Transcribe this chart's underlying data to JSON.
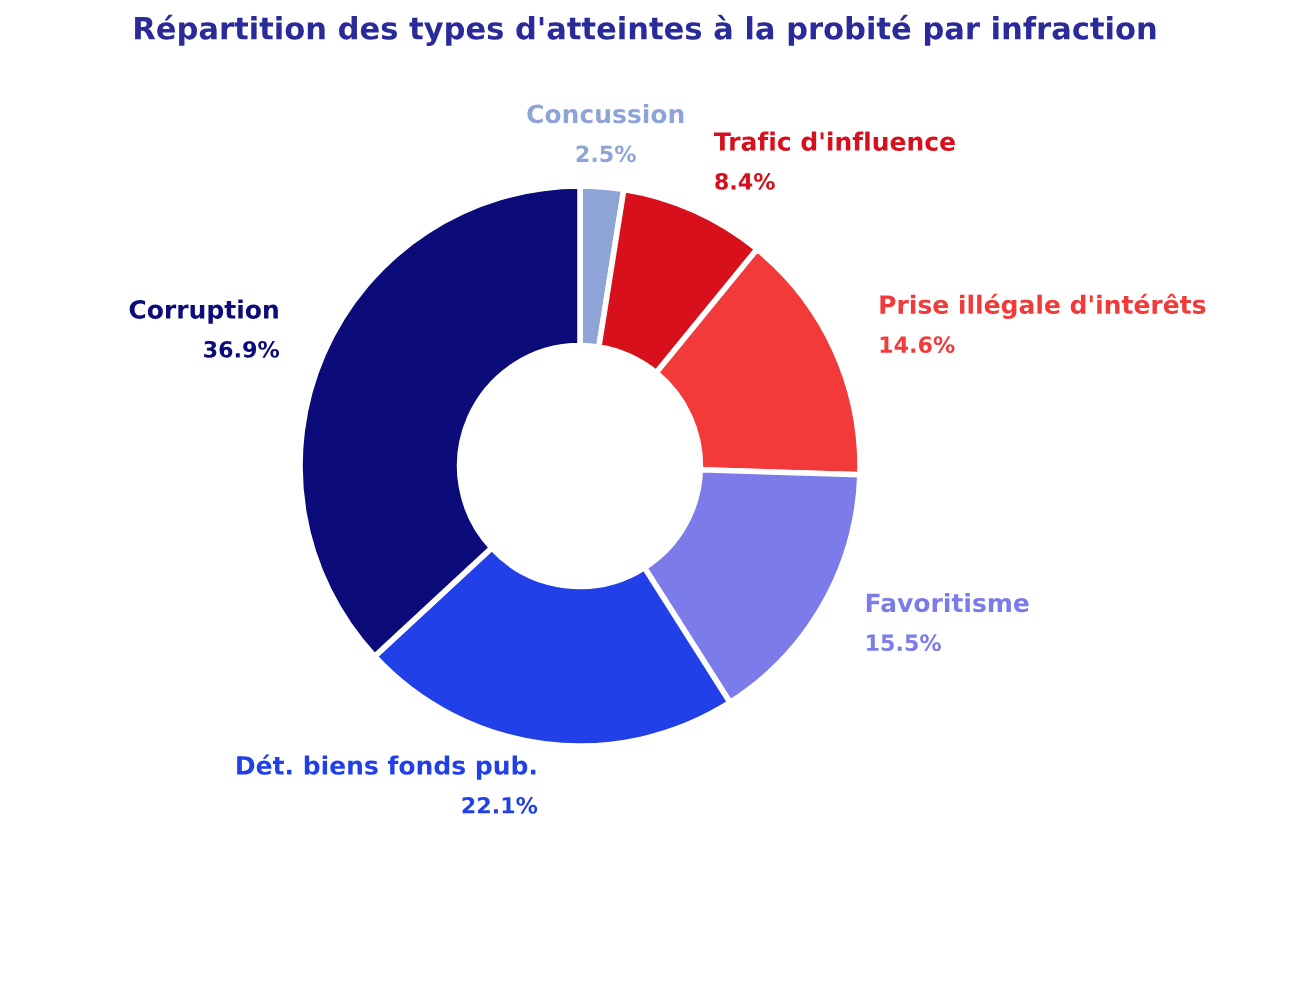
{
  "chart_data": {
    "type": "donut",
    "title": "Répartition des types d'atteintes à la probité par infraction",
    "categories": [
      "Concussion",
      "Trafic d'influence",
      "Prise illégale d'intérêts",
      "Favoritisme",
      "Dét. biens fonds pub.",
      "Corruption"
    ],
    "values": [
      2.5,
      8.4,
      14.6,
      15.5,
      22.1,
      36.9
    ],
    "value_labels": [
      "2.5%",
      "8.4%",
      "14.6%",
      "15.5%",
      "22.1%",
      "36.9%"
    ],
    "colors": [
      "#8ea3d6",
      "#d7101c",
      "#f23a3a",
      "#7b7bea",
      "#2140e8",
      "#0b0b7a"
    ],
    "legend": false
  }
}
